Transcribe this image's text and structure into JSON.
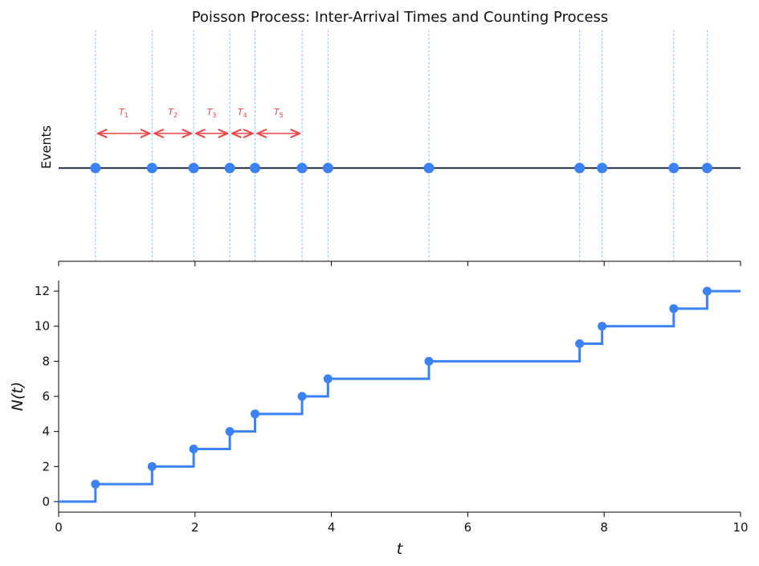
{
  "chart_data": [
    {
      "type": "scatter",
      "title": "Poisson Process: Inter-Arrival Times and Counting Process",
      "ylabel": "Events",
      "xlim": [
        0,
        10
      ],
      "event_times": [
        0.54,
        1.37,
        1.98,
        2.51,
        2.88,
        3.57,
        3.95,
        5.43,
        7.64,
        7.97,
        9.02,
        9.51
      ],
      "interarrival_labels": [
        {
          "base": "T",
          "sub": "1",
          "from": 0.54,
          "to": 1.37
        },
        {
          "base": "T",
          "sub": "2",
          "from": 1.37,
          "to": 1.98
        },
        {
          "base": "T",
          "sub": "3",
          "from": 1.98,
          "to": 2.51
        },
        {
          "base": "T",
          "sub": "4",
          "from": 2.51,
          "to": 2.88
        },
        {
          "base": "T",
          "sub": "5",
          "from": 2.88,
          "to": 3.57
        }
      ],
      "colors": {
        "points": "#3b82f6",
        "line": "#374151",
        "arrows": "#ef4444",
        "vlines": "#93c5fd"
      }
    },
    {
      "type": "line",
      "step": true,
      "xlabel": "t",
      "ylabel": "N(t)",
      "xlim": [
        0,
        10
      ],
      "ylim": [
        -0.6,
        12.6
      ],
      "x": [
        0,
        0.54,
        1.37,
        1.98,
        2.51,
        2.88,
        3.57,
        3.95,
        5.43,
        7.64,
        7.97,
        9.02,
        9.51
      ],
      "y": [
        0,
        1,
        2,
        3,
        4,
        5,
        6,
        7,
        8,
        9,
        10,
        11,
        12
      ],
      "x_ticks": [
        "0",
        "2",
        "4",
        "6",
        "8",
        "10"
      ],
      "y_ticks": [
        "0",
        "2",
        "4",
        "6",
        "8",
        "10",
        "12"
      ],
      "colors": {
        "line": "#3b82f6"
      }
    }
  ]
}
